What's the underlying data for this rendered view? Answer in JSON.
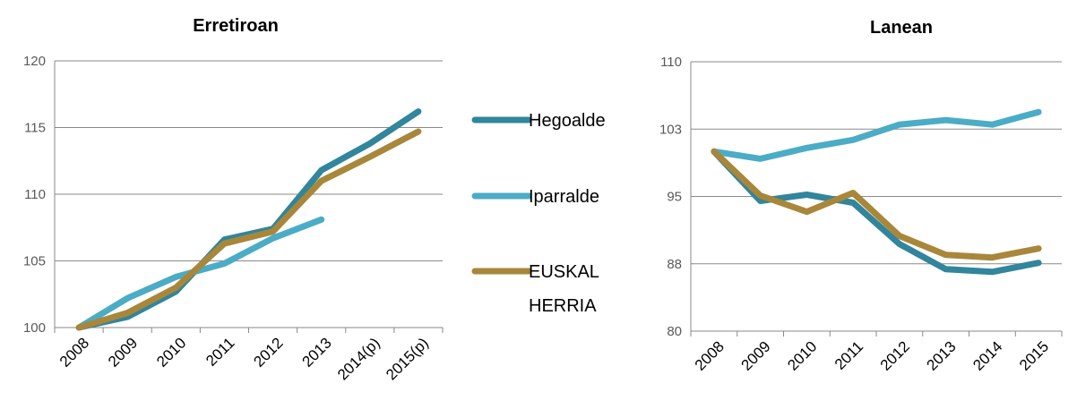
{
  "colors": {
    "hegoalde": "#31859c",
    "iparralde": "#4bacc6",
    "euskal_herria": "#a9873a"
  },
  "legend": [
    {
      "key": "hegoalde",
      "label": "Hegoalde"
    },
    {
      "key": "iparralde",
      "label": "Iparralde"
    },
    {
      "key": "euskal_herria",
      "label": "EUSKAL HERRIA",
      "label_lines": [
        "EUSKAL",
        "HERRIA"
      ]
    }
  ],
  "chart_data": [
    {
      "type": "line",
      "title": "Erretiroan",
      "categories": [
        "2008",
        "2009",
        "2010",
        "2011",
        "2012",
        "2013",
        "2014(p)",
        "2015(p)"
      ],
      "ylim": [
        100,
        120
      ],
      "yticks": [
        "100",
        "105",
        "110",
        "115",
        "120"
      ],
      "grid": true,
      "series": [
        {
          "key": "hegoalde",
          "values": [
            100,
            100.8,
            102.7,
            106.6,
            107.4,
            111.8,
            113.8,
            116.2
          ]
        },
        {
          "key": "iparralde",
          "values": [
            100,
            102.2,
            103.8,
            104.8,
            106.7,
            108.1,
            null,
            null
          ]
        },
        {
          "key": "euskal_herria",
          "values": [
            100,
            101.1,
            103.0,
            106.3,
            107.2,
            111.0,
            112.8,
            114.7
          ]
        }
      ]
    },
    {
      "type": "line",
      "title": "Lanean",
      "categories": [
        "2008",
        "2009",
        "2010",
        "2011",
        "2012",
        "2013",
        "2014",
        "2015"
      ],
      "ylim": [
        80,
        110
      ],
      "yticks": [
        "80",
        "88",
        "95",
        "103",
        "110"
      ],
      "grid": true,
      "series": [
        {
          "key": "hegoalde",
          "values": [
            100,
            94.5,
            95.2,
            94.3,
            89.7,
            86.9,
            86.6,
            87.6
          ]
        },
        {
          "key": "iparralde",
          "values": [
            100,
            99.2,
            100.4,
            101.3,
            103.0,
            103.5,
            103.0,
            104.4
          ]
        },
        {
          "key": "euskal_herria",
          "values": [
            100,
            95.1,
            93.3,
            95.4,
            90.6,
            88.5,
            88.2,
            89.2
          ]
        }
      ]
    }
  ]
}
